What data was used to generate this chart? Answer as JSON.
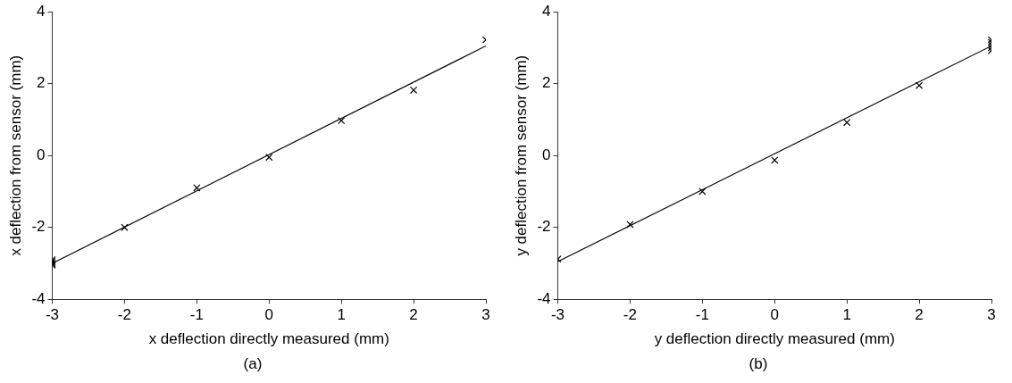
{
  "chart_data": [
    {
      "type": "scatter",
      "xlabel": "x deflection directly measured (mm)",
      "ylabel": "x deflection from sensor (mm)",
      "annotations": [
        "(a)"
      ],
      "grid": false,
      "xlim": [
        -3,
        3
      ],
      "ylim": [
        -4,
        4
      ],
      "xticks": [
        -3,
        -2,
        -1,
        0,
        1,
        2,
        3
      ],
      "yticks": [
        -4,
        -2,
        0,
        2,
        4
      ],
      "series": [
        {
          "color": "#000000",
          "marker": "cross",
          "x": [
            -3,
            -3,
            -3,
            -3,
            -2,
            -1,
            0,
            1,
            2,
            3
          ],
          "values": [
            -2.9,
            -2.95,
            -3.0,
            -3.05,
            -2.0,
            -0.9,
            -0.05,
            0.97,
            1.82,
            3.22
          ]
        },
        {
          "type": "line",
          "marker": "none",
          "color": "#000000",
          "x": [
            -3,
            3
          ],
          "values": [
            -3.0,
            3.05
          ]
        }
      ]
    },
    {
      "type": "scatter",
      "xlabel": "y deflection directly measured (mm)",
      "ylabel": "y deflection from sensor (mm)",
      "annotations": [
        "(b)"
      ],
      "grid": false,
      "xlim": [
        -3,
        3
      ],
      "ylim": [
        -4,
        4
      ],
      "xticks": [
        -3,
        -2,
        -1,
        0,
        1,
        2,
        3
      ],
      "yticks": [
        -4,
        -2,
        0,
        2,
        4
      ],
      "series": [
        {
          "color": "#000000",
          "marker": "cross",
          "x": [
            -3,
            -2,
            -1,
            0,
            1,
            2,
            3,
            3,
            3,
            3,
            3
          ],
          "values": [
            -2.88,
            -1.92,
            -1.0,
            -0.13,
            0.92,
            1.95,
            2.92,
            3.0,
            3.08,
            3.15,
            3.22
          ]
        },
        {
          "type": "line",
          "marker": "none",
          "color": "#000000",
          "x": [
            -3,
            3
          ],
          "values": [
            -2.95,
            3.05
          ]
        }
      ]
    }
  ]
}
